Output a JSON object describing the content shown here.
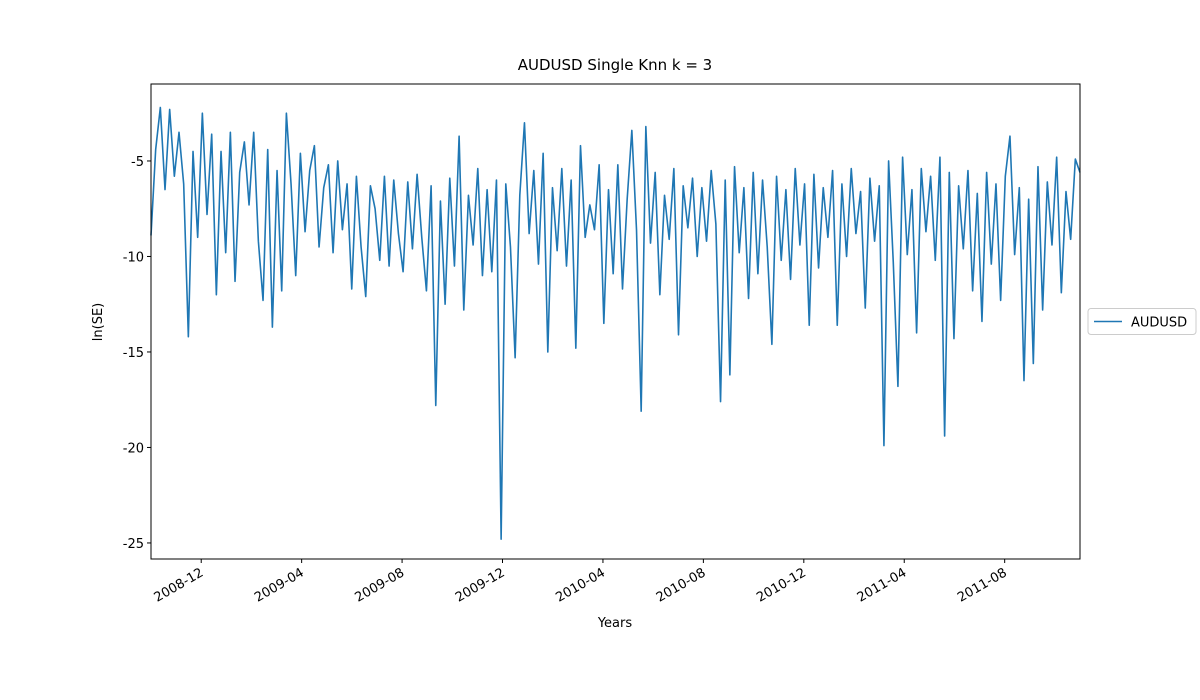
{
  "chart_data": {
    "type": "line",
    "title": "AUDUSD Single Knn k = 3",
    "xlabel": "Years",
    "ylabel": "ln(SE)",
    "series": [
      {
        "name": "AUDUSD",
        "color": "#1f77b4",
        "values": [
          -8.9,
          -4.4,
          -2.2,
          -6.5,
          -2.3,
          -5.8,
          -3.5,
          -6.2,
          -14.2,
          -4.5,
          -9.0,
          -2.5,
          -7.8,
          -3.6,
          -12.0,
          -4.5,
          -9.8,
          -3.5,
          -11.3,
          -5.6,
          -4.0,
          -7.3,
          -3.5,
          -9.2,
          -12.3,
          -4.4,
          -13.7,
          -5.5,
          -11.8,
          -2.5,
          -6.2,
          -11.0,
          -4.6,
          -8.7,
          -5.5,
          -4.2,
          -9.5,
          -6.4,
          -5.2,
          -9.8,
          -5.0,
          -8.6,
          -6.2,
          -11.7,
          -5.8,
          -9.5,
          -12.1,
          -6.3,
          -7.5,
          -10.2,
          -5.8,
          -10.5,
          -6.0,
          -8.8,
          -10.8,
          -6.1,
          -9.6,
          -5.7,
          -9.0,
          -11.8,
          -6.3,
          -17.8,
          -7.1,
          -12.5,
          -5.9,
          -10.5,
          -3.7,
          -12.8,
          -6.8,
          -9.4,
          -5.4,
          -11.0,
          -6.5,
          -10.8,
          -6.0,
          -24.8,
          -6.2,
          -9.5,
          -15.3,
          -6.8,
          -3.0,
          -8.8,
          -5.5,
          -10.4,
          -4.6,
          -15.0,
          -6.4,
          -9.7,
          -5.4,
          -10.5,
          -6.0,
          -14.8,
          -4.2,
          -9.0,
          -7.3,
          -8.6,
          -5.2,
          -13.5,
          -6.5,
          -10.9,
          -5.2,
          -11.7,
          -7.0,
          -3.4,
          -8.6,
          -18.1,
          -3.2,
          -9.3,
          -5.6,
          -12.0,
          -6.8,
          -9.1,
          -5.4,
          -14.1,
          -6.3,
          -8.5,
          -5.9,
          -10.0,
          -6.4,
          -9.2,
          -5.5,
          -8.3,
          -17.6,
          -6.0,
          -16.2,
          -5.3,
          -9.8,
          -6.4,
          -12.2,
          -5.6,
          -10.9,
          -6.0,
          -9.5,
          -14.6,
          -5.8,
          -10.2,
          -6.5,
          -11.2,
          -5.4,
          -9.4,
          -6.2,
          -13.6,
          -5.7,
          -10.6,
          -6.4,
          -9.0,
          -5.5,
          -13.6,
          -6.2,
          -10.0,
          -5.4,
          -8.8,
          -6.6,
          -12.7,
          -5.9,
          -9.2,
          -6.3,
          -19.9,
          -5.0,
          -10.3,
          -16.8,
          -4.8,
          -9.9,
          -6.5,
          -14.0,
          -5.4,
          -8.7,
          -5.8,
          -10.2,
          -4.8,
          -19.4,
          -5.6,
          -14.3,
          -6.3,
          -9.6,
          -5.5,
          -11.8,
          -6.7,
          -13.4,
          -5.6,
          -10.4,
          -6.2,
          -12.3,
          -5.8,
          -3.7,
          -9.9,
          -6.4,
          -16.5,
          -7.0,
          -15.6,
          -5.3,
          -12.8,
          -6.1,
          -9.4,
          -4.8,
          -11.9,
          -6.6,
          -9.1,
          -4.9,
          -5.6
        ]
      }
    ],
    "xlim": [
      "2008-10",
      "2011-11"
    ],
    "xticks": [
      "2008-12",
      "2009-04",
      "2009-08",
      "2009-12",
      "2010-04",
      "2010-08",
      "2010-12",
      "2011-04",
      "2011-08"
    ],
    "ylim": [
      -25.84,
      -0.97
    ],
    "yticks": [
      -25,
      -20,
      -15,
      -10,
      -5
    ],
    "legend": "right",
    "grid": false
  }
}
